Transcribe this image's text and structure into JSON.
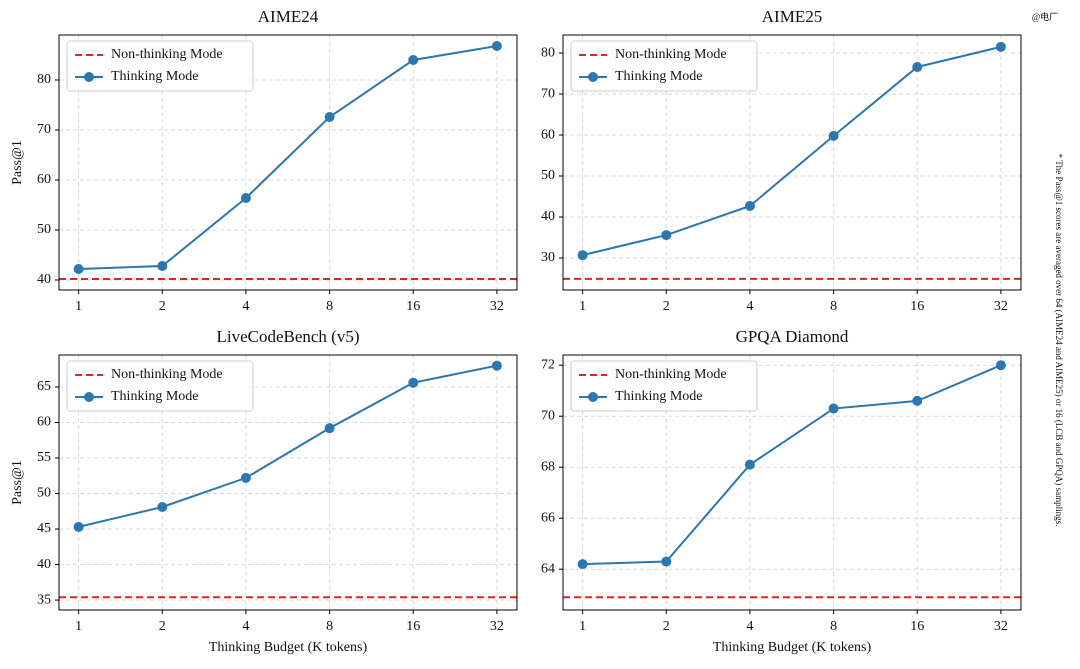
{
  "chart_data": [
    {
      "type": "line",
      "title": "AIME24",
      "ylabel": "Pass@1",
      "x": [
        1,
        2,
        4,
        8,
        16,
        32
      ],
      "xticks": [
        1,
        2,
        4,
        8,
        16,
        32
      ],
      "xlim": [
        0.85,
        37.8
      ],
      "xlog": true,
      "ylim": [
        38,
        89
      ],
      "yticks": [
        40,
        50,
        60,
        70,
        80
      ],
      "grid": true,
      "legend": "upper left",
      "series": [
        {
          "name": "Non-thinking Mode",
          "color": "#e8211d",
          "style": "dashed",
          "y": 40.2
        },
        {
          "name": "Thinking Mode",
          "color": "#2a77b1",
          "values": [
            42.2,
            42.8,
            56.4,
            72.6,
            84.0,
            86.8
          ]
        }
      ]
    },
    {
      "type": "line",
      "title": "AIME25",
      "x": [
        1,
        2,
        4,
        8,
        16,
        32
      ],
      "xticks": [
        1,
        2,
        4,
        8,
        16,
        32
      ],
      "xlim": [
        0.85,
        37.8
      ],
      "xlog": true,
      "ylim": [
        22.2,
        84.4
      ],
      "yticks": [
        30,
        40,
        50,
        60,
        70,
        80
      ],
      "grid": true,
      "legend": "upper left",
      "series": [
        {
          "name": "Non-thinking Mode",
          "color": "#e8211d",
          "style": "dashed",
          "y": 24.9
        },
        {
          "name": "Thinking Mode",
          "color": "#2a77b1",
          "values": [
            30.7,
            35.6,
            42.7,
            59.8,
            76.6,
            81.5
          ]
        }
      ]
    },
    {
      "type": "line",
      "title": "LiveCodeBench (v5)",
      "ylabel": "Pass@1",
      "xlabel": "Thinking Budget (K tokens)",
      "x": [
        1,
        2,
        4,
        8,
        16,
        32
      ],
      "xticks": [
        1,
        2,
        4,
        8,
        16,
        32
      ],
      "xlim": [
        0.85,
        37.8
      ],
      "xlog": true,
      "ylim": [
        33.6,
        69.5
      ],
      "yticks": [
        35,
        40,
        45,
        50,
        55,
        60,
        65
      ],
      "grid": true,
      "legend": "upper left",
      "series": [
        {
          "name": "Non-thinking Mode",
          "color": "#e8211d",
          "style": "dashed",
          "y": 35.4
        },
        {
          "name": "Thinking Mode",
          "color": "#2a77b1",
          "values": [
            45.3,
            48.1,
            52.2,
            59.2,
            65.6,
            68.0
          ]
        }
      ]
    },
    {
      "type": "line",
      "title": "GPQA Diamond",
      "xlabel": "Thinking Budget (K tokens)",
      "x": [
        1,
        2,
        4,
        8,
        16,
        32
      ],
      "xticks": [
        1,
        2,
        4,
        8,
        16,
        32
      ],
      "xlim": [
        0.85,
        37.8
      ],
      "xlog": true,
      "ylim": [
        62.4,
        72.4
      ],
      "yticks": [
        64,
        66,
        68,
        70,
        72
      ],
      "grid": true,
      "legend": "upper left",
      "series": [
        {
          "name": "Non-thinking Mode",
          "color": "#e8211d",
          "style": "dashed",
          "y": 62.9
        },
        {
          "name": "Thinking Mode",
          "color": "#2a77b1",
          "values": [
            64.2,
            64.3,
            68.1,
            70.3,
            70.6,
            72.0
          ]
        }
      ]
    }
  ],
  "note": "* The Pass@1 scores are averaged over 64 (AIME24 and AIME25) or 16 (LCB and GPQA) samplings.",
  "watermark": "@电厂"
}
